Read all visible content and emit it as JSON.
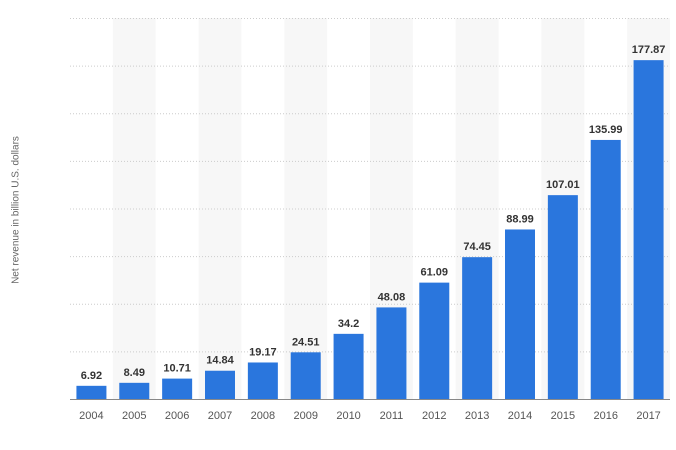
{
  "chart_data": {
    "type": "bar",
    "title": "",
    "xlabel": "",
    "ylabel": "Net revenue in billion U.S. dollars",
    "categories": [
      "2004",
      "2005",
      "2006",
      "2007",
      "2008",
      "2009",
      "2010",
      "2011",
      "2012",
      "2013",
      "2014",
      "2015",
      "2016",
      "2017"
    ],
    "values": [
      6.92,
      8.49,
      10.71,
      14.84,
      19.17,
      24.51,
      34.2,
      48.08,
      61.09,
      74.45,
      88.99,
      107.01,
      135.99,
      177.87
    ],
    "value_labels": [
      "6.92",
      "8.49",
      "10.71",
      "14.84",
      "19.17",
      "24.51",
      "34.2",
      "48.08",
      "61.09",
      "74.45",
      "88.99",
      "107.01",
      "135.99",
      "177.87"
    ],
    "ylim": [
      0,
      200
    ],
    "grid": true,
    "legend": "none",
    "colors": {
      "bar": "#2a76dd",
      "alt_band": "#f7f7f7",
      "grid": "#cccccc",
      "axis": "#888888"
    }
  }
}
